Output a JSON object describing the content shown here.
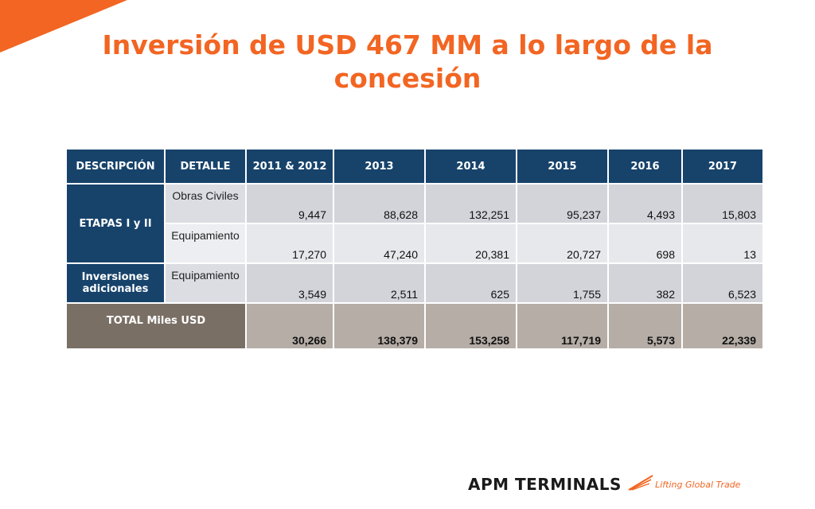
{
  "title": "Inversión de USD 467 MM a lo largo de la concesión",
  "table": {
    "headers": [
      "DESCRIPCIÓN",
      "DETALLE",
      "2011 & 2012",
      "2013",
      "2014",
      "2015",
      "2016",
      "2017"
    ],
    "groups": {
      "etapas": "ETAPAS I y II",
      "inversiones": "Inversiones adicionales"
    },
    "rows": [
      {
        "detalle": "Obras Civiles",
        "values": [
          "9,447",
          "88,628",
          "132,251",
          "95,237",
          "4,493",
          "15,803"
        ]
      },
      {
        "detalle": "Equipamiento",
        "values": [
          "17,270",
          "47,240",
          "20,381",
          "20,727",
          "698",
          "13"
        ]
      },
      {
        "detalle": "Equipamiento",
        "values": [
          "3,549",
          "2,511",
          "625",
          "1,755",
          "382",
          "6,523"
        ]
      }
    ],
    "total": {
      "label": "TOTAL Miles USD",
      "values": [
        "30,266",
        "138,379",
        "153,258",
        "117,719",
        "5,573",
        "22,339"
      ]
    }
  },
  "logo": {
    "name": "APM TERMINALS",
    "tagline": "Lifting Global Trade"
  },
  "colors": {
    "accent": "#f26522",
    "header_blue": "#17436b",
    "total_brown": "#7a6f65"
  }
}
